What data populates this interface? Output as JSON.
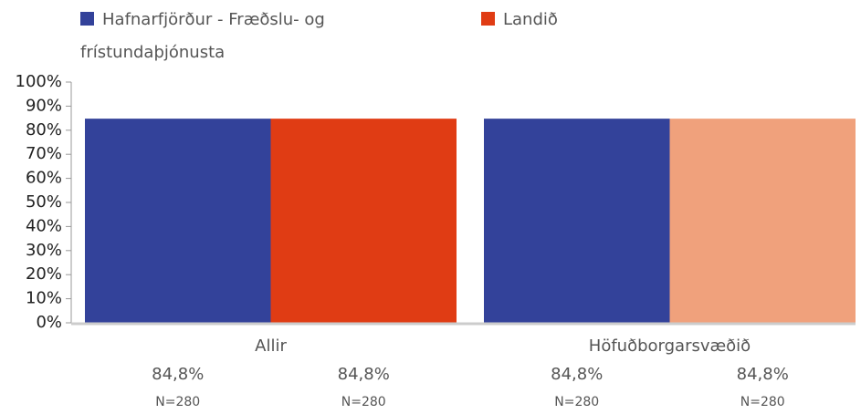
{
  "chart_data": {
    "type": "bar",
    "categories": [
      "Allir",
      "Höfuðborgarsvæðið"
    ],
    "series": [
      {
        "name": "Hafnarfjörður - Fræðslu- og frístundaþjónusta",
        "color": "#33429a",
        "colors": [
          "#33429a",
          "#33429a"
        ],
        "values": [
          84.8,
          84.8
        ],
        "value_labels": [
          "84,8%",
          "84,8%"
        ],
        "n_labels": [
          "N=280",
          "N=280"
        ]
      },
      {
        "name": "Landið",
        "color": "#e03c14",
        "colors": [
          "#e03c14",
          "#f0a17c"
        ],
        "values": [
          84.8,
          84.8
        ],
        "value_labels": [
          "84,8%",
          "84,8%"
        ],
        "n_labels": [
          "N=280",
          "N=280"
        ]
      }
    ],
    "ylim": [
      0,
      100
    ],
    "yticks": [
      {
        "value": 0,
        "label": "0%"
      },
      {
        "value": 10,
        "label": "10%"
      },
      {
        "value": 20,
        "label": "20%"
      },
      {
        "value": 30,
        "label": "30%"
      },
      {
        "value": 40,
        "label": "40%"
      },
      {
        "value": 50,
        "label": "50%"
      },
      {
        "value": 60,
        "label": "60%"
      },
      {
        "value": 70,
        "label": "70%"
      },
      {
        "value": 80,
        "label": "80%"
      },
      {
        "value": 90,
        "label": "90%"
      },
      {
        "value": 100,
        "label": "100%"
      }
    ],
    "grid": false
  }
}
